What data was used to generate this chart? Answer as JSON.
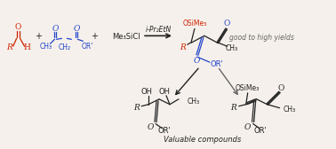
{
  "bg_color": "#f5f0eb",
  "figsize": [
    3.78,
    1.68
  ],
  "dpi": 100,
  "red": "#cc2200",
  "blue": "#2244cc",
  "black": "#222222",
  "gray": "#666666",
  "good_yield_text": "good to high yields",
  "valuable_text": "Valuable compounds",
  "condition_text": "i-Pr₂EtN",
  "reagent_text": "Me₃SiCl"
}
